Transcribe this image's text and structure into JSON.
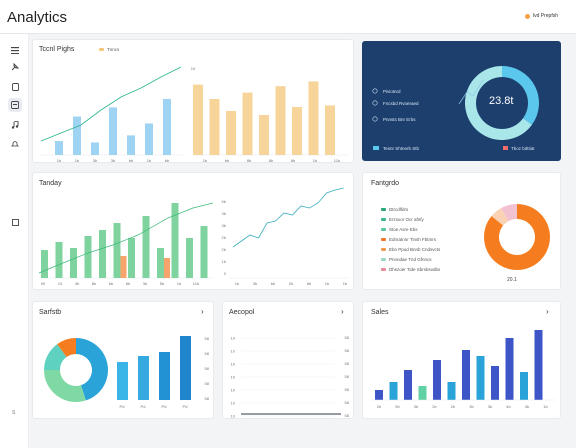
{
  "app": {
    "title": "Analytics",
    "user_label": "Ivd Prepfsh"
  },
  "sidebar": {
    "items": [
      {
        "icon": "menu-icon"
      },
      {
        "icon": "pin-icon"
      },
      {
        "icon": "document-icon"
      },
      {
        "icon": "archive-icon",
        "active": true
      },
      {
        "icon": "music-icon"
      },
      {
        "icon": "bell-icon"
      },
      {
        "icon": "square-icon"
      }
    ],
    "bottom_label": "S"
  },
  "card1": {
    "title": "Tccnl Pighs",
    "legend": "Tnncs",
    "legend_color": "#f5c77e",
    "chart_data": {
      "type": "bar",
      "bars_blue": [
        20,
        55,
        18,
        68,
        28,
        45,
        80
      ],
      "bars_orange": [
        88,
        70,
        55,
        78,
        50,
        86,
        60,
        92,
        62
      ],
      "line": [
        14,
        22,
        30,
        45,
        58,
        67,
        78,
        88
      ],
      "x_ticks": [
        "1b",
        "1b",
        "3b",
        "3b",
        "bb",
        "1b",
        "bb"
      ],
      "x_ticks_right": [
        "1b",
        "bb",
        "8b",
        "8b",
        "8b",
        "1b",
        "11b"
      ],
      "top_label": "10"
    }
  },
  "card2": {
    "items": [
      "Piviotnrd",
      "Fncsbd Rvoeraed",
      "Pnnsts Bnr Erbs"
    ],
    "button_left": "Tesnr Shtnerb Stb",
    "button_right": "Tboz bdttiat",
    "center_value": "23.8t",
    "chart_data": {
      "type": "pie",
      "values": [
        35,
        65
      ],
      "colors": [
        "#5bc7ec",
        "#a8e6ea"
      ]
    }
  },
  "card3": {
    "title": "Tanday",
    "chart_data": {
      "type": "bar",
      "bars_green": [
        28,
        36,
        30,
        42,
        48,
        55,
        40,
        62,
        30,
        75,
        40,
        52
      ],
      "bars_orange": [
        0,
        0,
        0,
        0,
        0,
        22,
        0,
        0,
        20,
        0,
        0,
        0
      ],
      "x_ticks": [
        "90",
        "10",
        "4b",
        "8b",
        "bb",
        "8b",
        "3b",
        "5b",
        "1b",
        "11b"
      ],
      "y_ticks_right": [
        "5b",
        "3b",
        "3b",
        "2b",
        "2b",
        "1b",
        "0"
      ],
      "line": [
        6,
        12,
        18,
        15,
        30,
        32,
        40,
        38,
        47,
        45,
        50,
        60,
        63,
        65
      ]
    }
  },
  "card4": {
    "title": "Fantgrdo",
    "legend": [
      {
        "label": "Dtrcdlfdrs",
        "color": "#2aa876"
      },
      {
        "label": "Erzsvor Ocr afnfy",
        "color": "#3bb98a"
      },
      {
        "label": "Stoe Asre Ebs",
        "color": "#59c99c"
      },
      {
        "label": "Ednratnnr Tinsh Fbtmrs",
        "color": "#f2782c"
      },
      {
        "label": "Ebn Ppod Bnnb Cndsvcts",
        "color": "#f59a4c"
      },
      {
        "label": "Pnnndae Tnd Gfnncs",
        "color": "#9ad7c6"
      },
      {
        "label": "Dhszoer Tide Sbrsbsvdbs",
        "color": "#e98a9c"
      }
    ],
    "footer": "20.1",
    "chart_data": {
      "type": "pie",
      "values": [
        86,
        6,
        8
      ],
      "colors": [
        "#f57d1f",
        "#fbd3b4",
        "#f3c2d0"
      ]
    }
  },
  "card5": {
    "title": "Sarfstb",
    "chart_data": {
      "type": "bar",
      "pie_values": [
        45,
        30,
        15,
        10
      ],
      "pie_colors": [
        "#29a3d8",
        "#7ed9a5",
        "#5fd1c1",
        "#f57d1f"
      ],
      "bars": [
        38,
        44,
        48,
        64
      ],
      "bar_colors": [
        "#3bb4e8",
        "#35a9e0",
        "#2292d4",
        "#1f86cd"
      ],
      "x_ticks": [
        "Pd",
        "Pd",
        "Pd",
        "Pd"
      ],
      "y_ticks_right": [
        "58",
        "58",
        "58",
        "58",
        "58"
      ]
    }
  },
  "card6": {
    "title": "Aecopol",
    "chart_data": {
      "type": "line",
      "y_ticks": [
        "10",
        "10",
        "10",
        "10",
        "10",
        "10",
        "10"
      ],
      "y_ticks_right": [
        "58",
        "58",
        "58",
        "58",
        "58",
        "58",
        "58"
      ]
    }
  },
  "card7": {
    "title": "Sales",
    "chart_data": {
      "type": "bar",
      "bars": [
        10,
        18,
        30,
        14,
        40,
        18,
        50,
        44,
        34,
        62,
        28,
        70
      ],
      "bar_colors": [
        "#3d55c6",
        "#29a3d8",
        "#3d55c6",
        "#5fd1a5",
        "#3d55c6",
        "#29a3d8",
        "#3d55c6",
        "#29a3d8",
        "#3d55c6",
        "#3d55c6",
        "#29a3d8",
        "#3d55c6"
      ],
      "x_ticks": [
        "2b",
        "5b",
        "3b",
        "2b",
        "2b",
        "3b",
        "3b",
        "4b",
        "3b",
        "1b"
      ]
    }
  }
}
